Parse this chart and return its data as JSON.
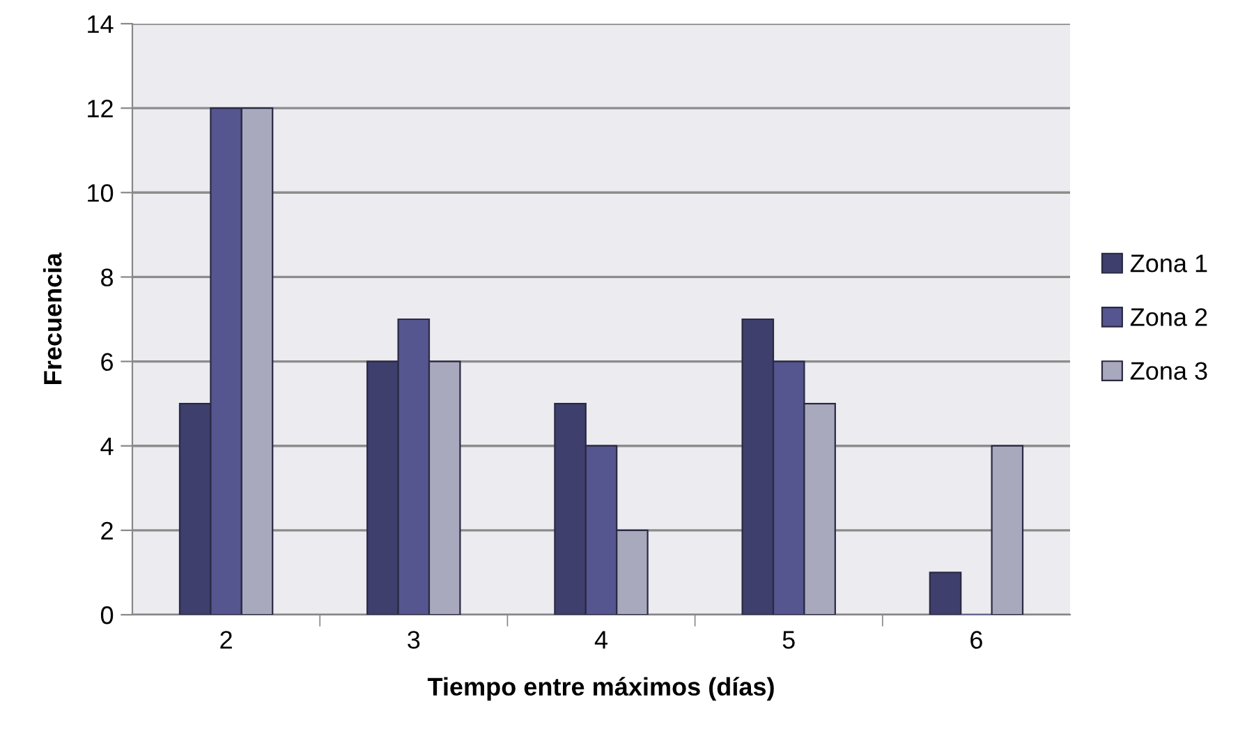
{
  "chart_data": {
    "type": "bar",
    "xlabel": "Tiempo entre máximos (días)",
    "ylabel": "Frecuencia",
    "categories": [
      "2",
      "3",
      "4",
      "5",
      "6"
    ],
    "series": [
      {
        "name": "Zona 1",
        "color": "#3f3f6e",
        "values": [
          5,
          6,
          5,
          7,
          1
        ]
      },
      {
        "name": "Zona 2",
        "color": "#55558f",
        "values": [
          12,
          7,
          4,
          6,
          0
        ]
      },
      {
        "name": "Zona 3",
        "color": "#a9a9bd",
        "values": [
          12,
          6,
          2,
          5,
          4
        ]
      }
    ],
    "ylim": [
      0,
      14
    ],
    "yticks": [
      0,
      2,
      4,
      6,
      8,
      10,
      12,
      14
    ],
    "grid": "y",
    "legend": "right"
  }
}
